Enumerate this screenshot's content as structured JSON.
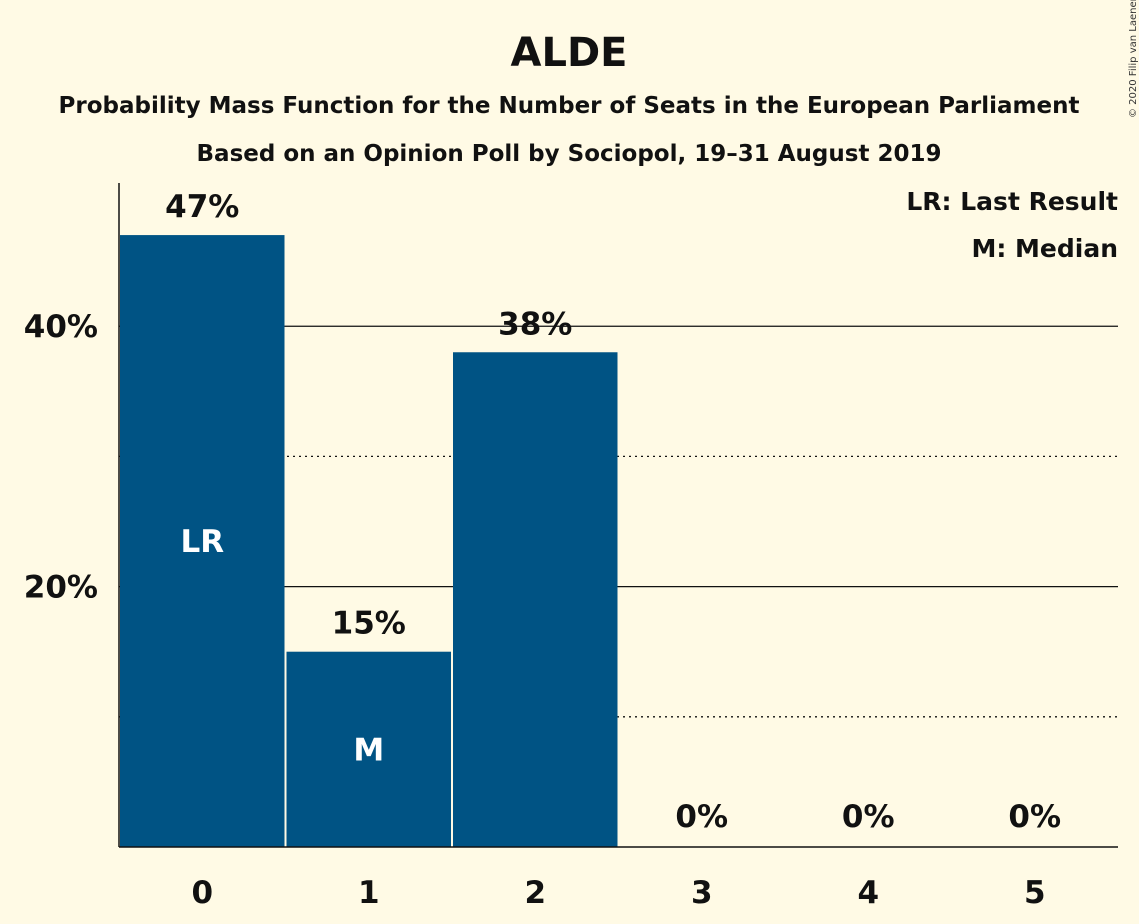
{
  "copyright": "© 2020 Filip van Laenen",
  "chart_data": {
    "type": "bar",
    "title": "ALDE",
    "subtitle": "Probability Mass Function for the Number of Seats in the European Parliament",
    "subtitle2": "Based on an Opinion Poll by Sociopol, 19–31 August 2019",
    "categories": [
      "0",
      "1",
      "2",
      "3",
      "4",
      "5"
    ],
    "values": [
      47,
      15,
      38,
      0,
      0,
      0
    ],
    "value_labels": [
      "47%",
      "15%",
      "38%",
      "0%",
      "0%",
      "0%"
    ],
    "bar_markers": [
      "LR",
      "M",
      "",
      "",
      "",
      ""
    ],
    "ylim": [
      0,
      51
    ],
    "yticks": [
      {
        "value": 20,
        "label": "20%"
      },
      {
        "value": 40,
        "label": "40%"
      }
    ],
    "minor_gridlines": [
      10,
      30
    ],
    "legend": [
      "LR: Last Result",
      "M: Median"
    ],
    "legend_position": "top-right",
    "bar_color": "#005384",
    "background": "#fffae5"
  }
}
